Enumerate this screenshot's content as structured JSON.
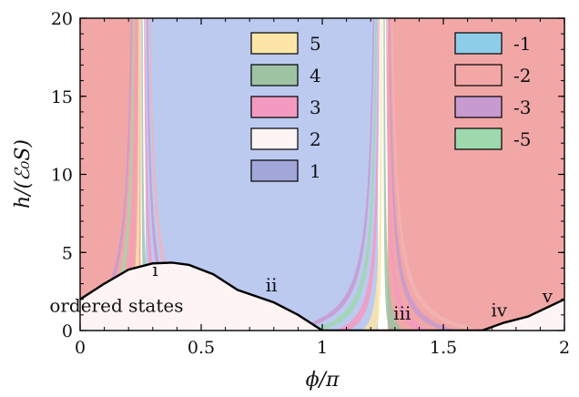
{
  "chart_data": {
    "type": "heatmap",
    "title": "",
    "xlabel": "ϕ/π",
    "ylabel": "h/(ℰ₀S)",
    "xlim": [
      0,
      2
    ],
    "ylim": [
      0,
      20
    ],
    "xticks": [
      0,
      0.5,
      1,
      1.5,
      2
    ],
    "xtick_labels": [
      "0",
      "0.5",
      "1",
      "1.5",
      "2"
    ],
    "yticks": [
      0,
      5,
      10,
      15,
      20
    ],
    "ytick_labels": [
      "0",
      "5",
      "10",
      "15",
      "20"
    ],
    "grid": false,
    "legend": [
      {
        "label": "5",
        "color": "#fbe6a8",
        "placement": "top-center"
      },
      {
        "label": "4",
        "color": "#9dc3a3",
        "placement": "top-center"
      },
      {
        "label": "3",
        "color": "#f49ac1",
        "placement": "top-center"
      },
      {
        "label": "2",
        "color": "#fff4f4",
        "placement": "top-center"
      },
      {
        "label": "1",
        "color": "#a3a6d9",
        "placement": "top-center"
      },
      {
        "label": "-1",
        "color": "#8ecde8",
        "placement": "top-right"
      },
      {
        "label": "-2",
        "color": "#f2a7a7",
        "placement": "top-right"
      },
      {
        "label": "-3",
        "color": "#c79ad0",
        "placement": "top-right"
      },
      {
        "label": "-5",
        "color": "#9ed8ad",
        "placement": "top-right"
      }
    ],
    "regions": [
      {
        "value": "-2",
        "phi_range": [
          0,
          0.25
        ],
        "color": "#f2a7a7"
      },
      {
        "value": "1",
        "phi_range": [
          0.27,
          1.23
        ],
        "color": "#bccaf0"
      },
      {
        "value": "-2",
        "phi_range": [
          1.27,
          2
        ],
        "color": "#f2a7a7"
      }
    ],
    "boundary": {
      "name": "ordered states boundary",
      "x": [
        0,
        0.1,
        0.2,
        0.3,
        0.38,
        0.45,
        0.55,
        0.65,
        0.8,
        0.9,
        1.0,
        1.1,
        1.66,
        1.75,
        1.85,
        2.0
      ],
      "y": [
        2.0,
        3.0,
        3.9,
        4.3,
        4.35,
        4.2,
        3.6,
        2.6,
        1.8,
        1.0,
        0.0,
        0.0,
        0.0,
        0.5,
        0.9,
        2.0
      ]
    },
    "annotations": [
      {
        "text": "ordered states",
        "x": 0.15,
        "y": 1.2
      },
      {
        "text": "i",
        "x": 0.31,
        "y": 3.5
      },
      {
        "text": "ii",
        "x": 0.79,
        "y": 2.5
      },
      {
        "text": "iii",
        "x": 1.33,
        "y": 0.7
      },
      {
        "text": "iv",
        "x": 1.73,
        "y": 0.9
      },
      {
        "text": "v",
        "x": 1.93,
        "y": 1.8
      }
    ]
  },
  "colors": {
    "axis": "#000000",
    "ordered_fill": "#fff4f4",
    "blue_region": "#bccaf0",
    "red_region": "#f2a7a7"
  }
}
